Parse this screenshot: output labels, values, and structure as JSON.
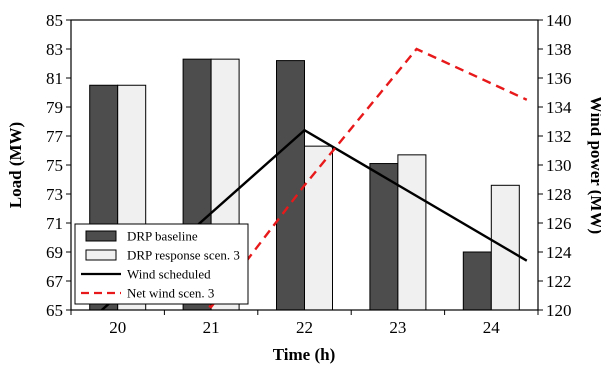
{
  "chart_data": {
    "type": "bar",
    "xlabel": "Time (h)",
    "ylabel": "Load (MW)",
    "y2label": "Wind power (MW)",
    "categories": [
      "20",
      "21",
      "22",
      "23",
      "24"
    ],
    "ylim": [
      65,
      85
    ],
    "yticks": [
      65,
      67,
      69,
      71,
      73,
      75,
      77,
      79,
      81,
      83,
      85
    ],
    "y2lim": [
      120,
      140
    ],
    "y2ticks": [
      120,
      122,
      124,
      126,
      128,
      130,
      132,
      134,
      136,
      138,
      140
    ],
    "bar_series": [
      {
        "name": "DRP baseline",
        "values": [
          80.5,
          82.3,
          82.2,
          75.1,
          69.0
        ],
        "color": "#4d4d4d"
      },
      {
        "name": "DRP response scen. 3",
        "values": [
          80.5,
          82.3,
          76.3,
          75.7,
          73.6
        ],
        "color": "#f0f0f0"
      }
    ],
    "line_series": [
      {
        "name": "Wind scheduled",
        "axis": "right",
        "color": "#000000",
        "style": "solid",
        "x": [
          19.62,
          22.0,
          24.38
        ],
        "y": [
          118.8,
          132.4,
          123.4
        ]
      },
      {
        "name": "Net wind scen. 3",
        "axis": "right",
        "color": "#e8191a",
        "style": "dashed",
        "x": [
          19.62,
          20.0,
          21.0,
          22.0,
          23.2,
          24.38
        ],
        "y": [
          125.8,
          124.0,
          120.2,
          128.6,
          138.0,
          134.5
        ]
      }
    ],
    "legend_position": "bottom-left",
    "grid": false
  }
}
